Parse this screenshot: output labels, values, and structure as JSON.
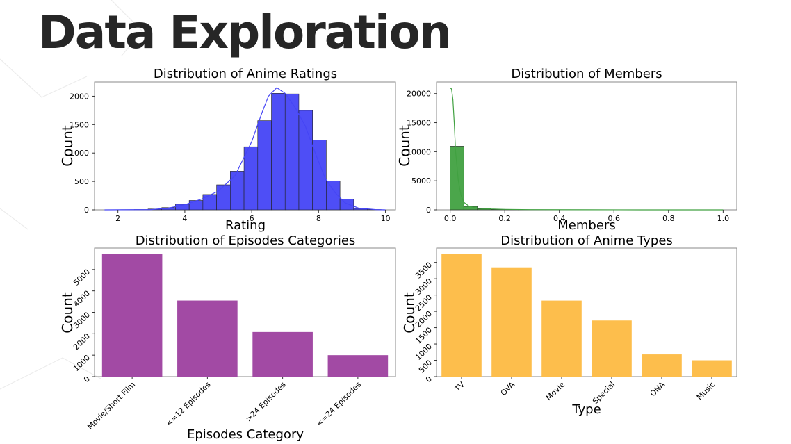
{
  "slide": {
    "title": "Data Exploration"
  },
  "colors": {
    "ratings": "#4545f5",
    "members": "#41a141",
    "episodes": "#a24aa4",
    "types": "#fdbe4c"
  },
  "chart_data": [
    {
      "id": "ratings",
      "type": "bar",
      "title": "Distribution of Anime Ratings",
      "xlabel": "Rating",
      "ylabel": "Count",
      "xlim": [
        1.3,
        10.3
      ],
      "ylim": [
        0,
        2250
      ],
      "xticks": [
        2,
        4,
        6,
        8,
        10
      ],
      "yticks": [
        0,
        500,
        1000,
        1500,
        2000
      ],
      "bins": [
        {
          "x0": 1.67,
          "x1": 2.08,
          "value": 2
        },
        {
          "x0": 2.08,
          "x1": 2.49,
          "value": 3
        },
        {
          "x0": 2.49,
          "x1": 2.9,
          "value": 5
        },
        {
          "x0": 2.9,
          "x1": 3.31,
          "value": 15
        },
        {
          "x0": 3.31,
          "x1": 3.72,
          "value": 40
        },
        {
          "x0": 3.72,
          "x1": 4.13,
          "value": 100
        },
        {
          "x0": 4.13,
          "x1": 4.54,
          "value": 165
        },
        {
          "x0": 4.54,
          "x1": 4.95,
          "value": 270
        },
        {
          "x0": 4.95,
          "x1": 5.36,
          "value": 440
        },
        {
          "x0": 5.36,
          "x1": 5.77,
          "value": 680
        },
        {
          "x0": 5.77,
          "x1": 6.18,
          "value": 1110
        },
        {
          "x0": 6.18,
          "x1": 6.59,
          "value": 1570
        },
        {
          "x0": 6.59,
          "x1": 7.0,
          "value": 2050
        },
        {
          "x0": 7.0,
          "x1": 7.41,
          "value": 2040
        },
        {
          "x0": 7.41,
          "x1": 7.82,
          "value": 1750
        },
        {
          "x0": 7.82,
          "x1": 8.23,
          "value": 1230
        },
        {
          "x0": 8.23,
          "x1": 8.64,
          "value": 510
        },
        {
          "x0": 8.64,
          "x1": 9.05,
          "value": 190
        },
        {
          "x0": 9.05,
          "x1": 9.46,
          "value": 25
        },
        {
          "x0": 9.46,
          "x1": 9.87,
          "value": 5
        }
      ],
      "kde": [
        [
          1.6,
          0
        ],
        [
          3,
          5
        ],
        [
          3.5,
          30
        ],
        [
          4,
          90
        ],
        [
          4.5,
          190
        ],
        [
          5,
          330
        ],
        [
          5.5,
          600
        ],
        [
          6,
          1200
        ],
        [
          6.3,
          1700
        ],
        [
          6.5,
          2000
        ],
        [
          6.75,
          2150
        ],
        [
          7,
          2050
        ],
        [
          7.3,
          1800
        ],
        [
          7.6,
          1480
        ],
        [
          7.9,
          1000
        ],
        [
          8.2,
          550
        ],
        [
          8.5,
          300
        ],
        [
          8.8,
          120
        ],
        [
          9.2,
          30
        ],
        [
          9.7,
          5
        ],
        [
          10,
          0
        ]
      ]
    },
    {
      "id": "members",
      "type": "bar",
      "title": "Distribution of Members",
      "xlabel": "Members",
      "ylabel": "Count",
      "xlim": [
        -0.05,
        1.05
      ],
      "ylim": [
        0,
        22000
      ],
      "xticks": [
        0.0,
        0.2,
        0.4,
        0.6,
        0.8,
        1.0
      ],
      "xtick_labels": [
        "0.0",
        "0.2",
        "0.4",
        "0.6",
        "0.8",
        "1.0"
      ],
      "yticks": [
        0,
        5000,
        10000,
        15000,
        20000
      ],
      "bins": [
        {
          "x0": 0.0,
          "x1": 0.05,
          "value": 10950
        },
        {
          "x0": 0.05,
          "x1": 0.1,
          "value": 600
        },
        {
          "x0": 0.1,
          "x1": 0.15,
          "value": 200
        },
        {
          "x0": 0.15,
          "x1": 0.2,
          "value": 90
        },
        {
          "x0": 0.2,
          "x1": 0.25,
          "value": 50
        },
        {
          "x0": 0.25,
          "x1": 0.3,
          "value": 25
        },
        {
          "x0": 0.3,
          "x1": 0.35,
          "value": 15
        },
        {
          "x0": 0.35,
          "x1": 0.4,
          "value": 10
        }
      ],
      "kde": [
        [
          0.0,
          21000
        ],
        [
          0.005,
          20800
        ],
        [
          0.01,
          19000
        ],
        [
          0.015,
          15000
        ],
        [
          0.02,
          10000
        ],
        [
          0.03,
          5000
        ],
        [
          0.04,
          2500
        ],
        [
          0.05,
          1300
        ],
        [
          0.07,
          600
        ],
        [
          0.1,
          300
        ],
        [
          0.15,
          150
        ],
        [
          0.2,
          80
        ],
        [
          0.3,
          40
        ],
        [
          0.5,
          15
        ],
        [
          0.7,
          5
        ],
        [
          1.0,
          2
        ]
      ]
    },
    {
      "id": "episodes",
      "type": "bar",
      "title": "Distribution of Episodes Categories",
      "xlabel": "Episodes Category",
      "ylabel": "Count",
      "categories": [
        "Movie/Short Film",
        "<=12 Episodes",
        ">24 Episodes",
        "<=24 Episodes"
      ],
      "values": [
        5720,
        3550,
        2080,
        1000
      ],
      "ylim": [
        0,
        6000
      ],
      "yticks": [
        0,
        1000,
        2000,
        3000,
        4000,
        5000
      ]
    },
    {
      "id": "types",
      "type": "bar",
      "title": "Distribution of Anime Types",
      "xlabel": "Type",
      "ylabel": "Count",
      "categories": [
        "TV",
        "OVA",
        "Movie",
        "Special",
        "ONA",
        "Music"
      ],
      "values": [
        3750,
        3350,
        2330,
        1720,
        680,
        500
      ],
      "ylim": [
        0,
        3940
      ],
      "yticks": [
        0,
        500,
        1000,
        1500,
        2000,
        2500,
        3000,
        3500
      ]
    }
  ]
}
